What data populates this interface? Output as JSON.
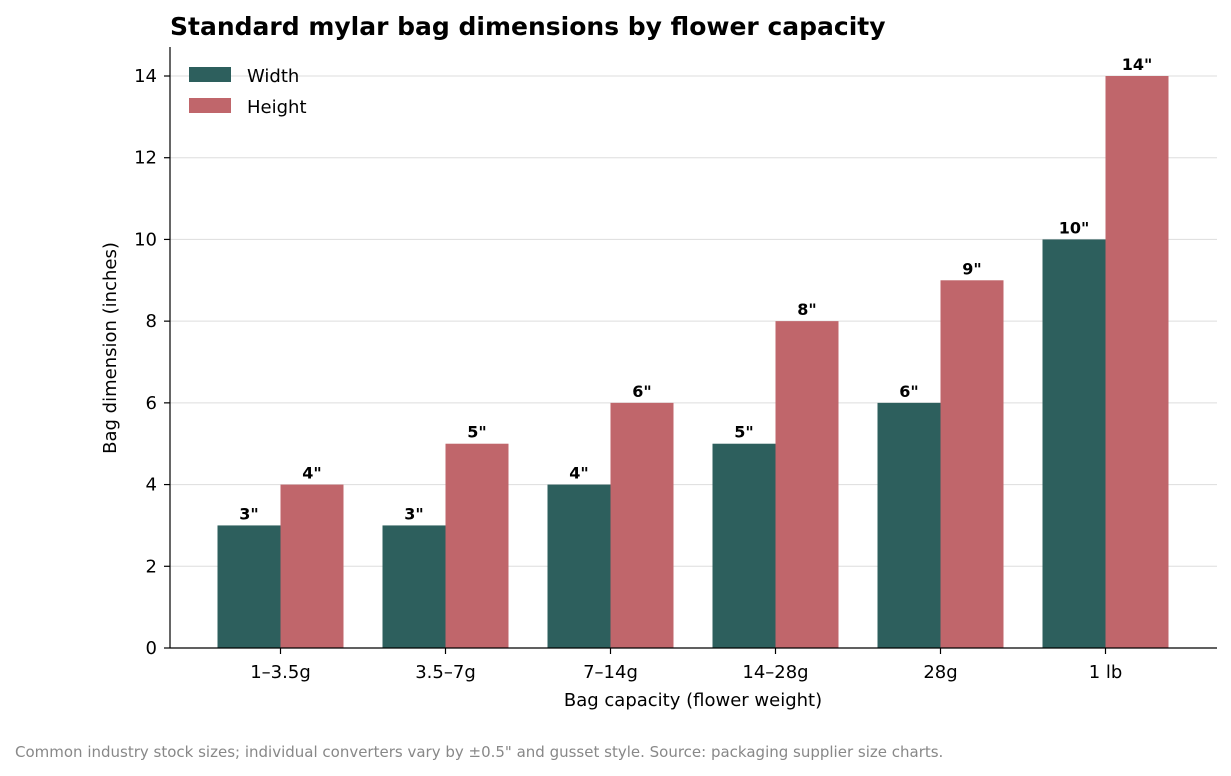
{
  "chart_data": {
    "type": "bar",
    "title": "Standard mylar bag dimensions by flower capacity",
    "xlabel": "Bag capacity (flower weight)",
    "ylabel": "Bag dimension (inches)",
    "categories": [
      "1–3.5g",
      "3.5–7g",
      "7–14g",
      "14–28g",
      "28g",
      "1 lb"
    ],
    "series": [
      {
        "name": "Width",
        "values": [
          3,
          3,
          4,
          5,
          6,
          10
        ],
        "labels": [
          "3\"",
          "3\"",
          "4\"",
          "5\"",
          "6\"",
          "10\""
        ],
        "color": "#2d5f5d"
      },
      {
        "name": "Height",
        "values": [
          4,
          5,
          6,
          8,
          9,
          14
        ],
        "labels": [
          "4\"",
          "5\"",
          "6\"",
          "8\"",
          "9\"",
          "14\""
        ],
        "color": "#c0666b"
      }
    ],
    "ylim": [
      0,
      14.7
    ],
    "yticks": [
      0,
      2,
      4,
      6,
      8,
      10,
      12,
      14
    ],
    "grid": "y",
    "legend": "top-left"
  },
  "footnote": "Common industry stock sizes; individual converters vary by ±0.5\" and gusset style. Source: packaging supplier size charts."
}
